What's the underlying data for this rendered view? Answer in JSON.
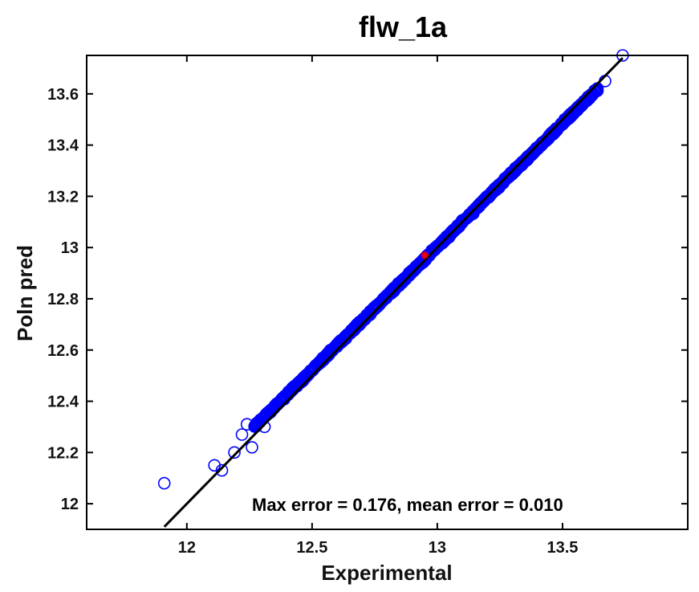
{
  "chart_data": {
    "type": "scatter",
    "title": "flw_1a",
    "xlabel": "Experimental",
    "ylabel": "Poln pred",
    "xlim": [
      11.6,
      14.0
    ],
    "ylim": [
      11.9,
      13.75
    ],
    "xticks": [
      12,
      12.5,
      13,
      13.5
    ],
    "xtick_labels": [
      "12",
      "12.5",
      "13",
      "13.5"
    ],
    "yticks": [
      12,
      12.2,
      12.4,
      12.6,
      12.8,
      13,
      13.2,
      13.4,
      13.6
    ],
    "ytick_labels": [
      "12",
      "12.2",
      "12.4",
      "12.6",
      "12.8",
      "13",
      "13.2",
      "13.4",
      "13.6"
    ],
    "grid": false,
    "annotation": "Max error = 0.176, mean error = 0.010",
    "series": [
      {
        "marker": "open-circle",
        "color": "#0000ff",
        "x_range": [
          11.9,
          13.74
        ],
        "y_range": [
          12.08,
          13.75
        ],
        "approx_count": 1200,
        "notable_points": [
          {
            "x": 11.91,
            "y": 12.08
          },
          {
            "x": 12.11,
            "y": 12.15
          },
          {
            "x": 12.14,
            "y": 12.13
          },
          {
            "x": 12.19,
            "y": 12.2
          },
          {
            "x": 12.22,
            "y": 12.27
          },
          {
            "x": 12.24,
            "y": 12.31
          },
          {
            "x": 12.26,
            "y": 12.22
          },
          {
            "x": 12.31,
            "y": 12.3
          },
          {
            "x": 13.67,
            "y": 13.65
          },
          {
            "x": 13.74,
            "y": 13.75
          }
        ]
      }
    ],
    "reference_line": {
      "type": "y=x",
      "color": "#000000",
      "x_range": [
        11.91,
        13.74
      ]
    },
    "highlight_point": {
      "x": 12.95,
      "y": 12.97,
      "marker": "star",
      "color": "#ff0000"
    }
  }
}
